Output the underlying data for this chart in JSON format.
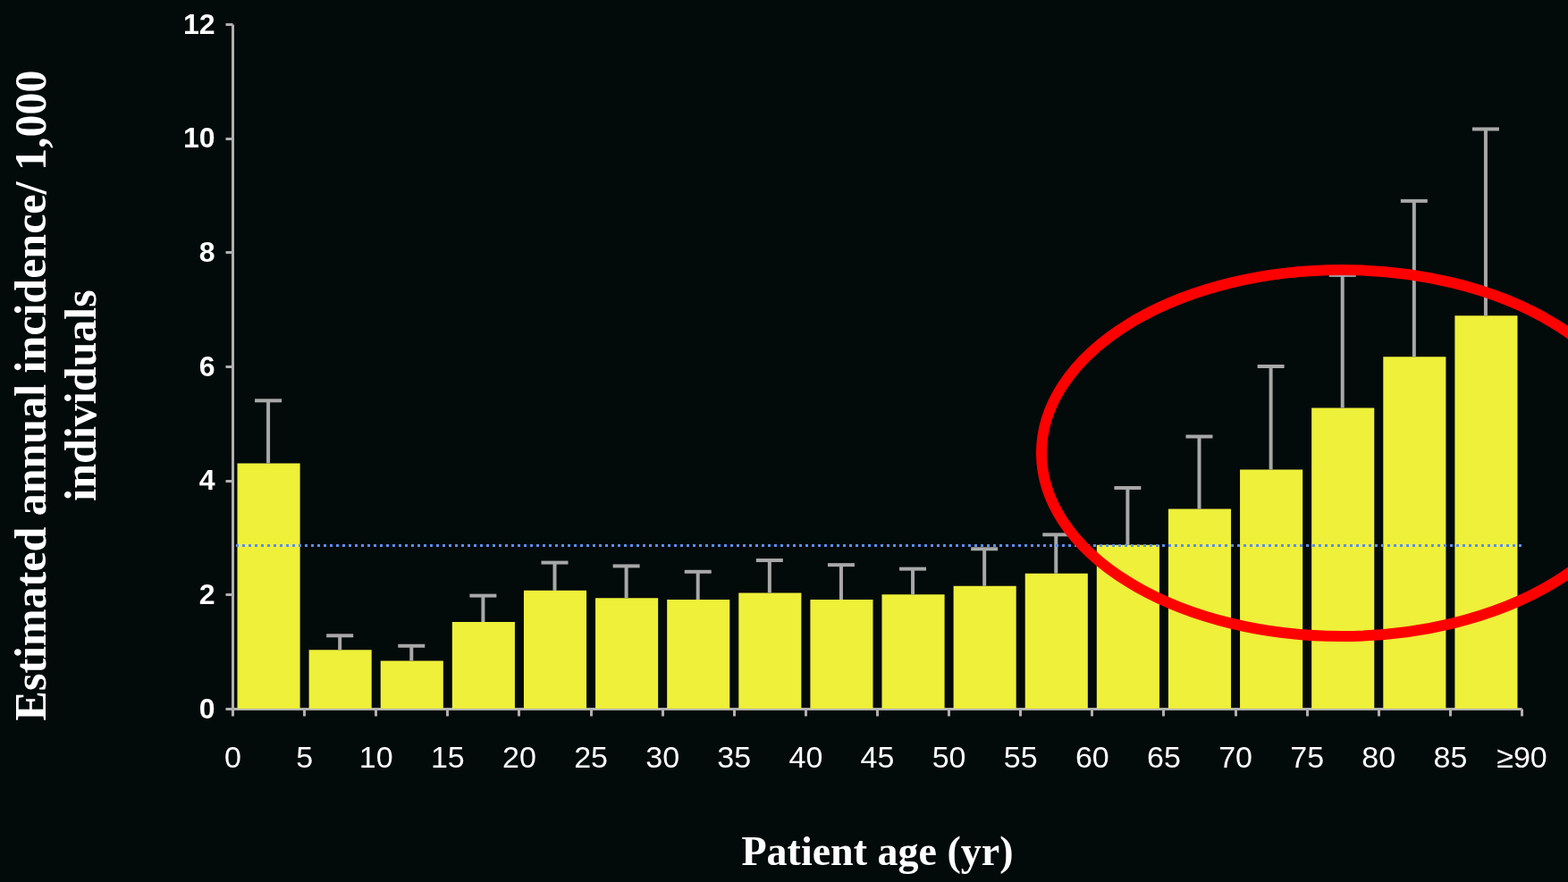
{
  "chart_data": {
    "type": "histogram",
    "xlabel": "Patient age (yr)",
    "ylabel": "Estimated annual incidence/ 1,000\nindividuals",
    "bins": [
      0,
      5,
      10,
      15,
      20,
      25,
      30,
      35,
      40,
      45,
      50,
      55,
      60,
      65,
      70,
      75,
      80,
      85,
      90
    ],
    "values": [
      4.3,
      1.03,
      0.84,
      1.52,
      2.07,
      1.94,
      1.91,
      2.03,
      1.91,
      2.0,
      2.15,
      2.37,
      2.87,
      3.5,
      4.19,
      5.27,
      6.17,
      6.89
    ],
    "errors": [
      [
        4.3,
        5.4
      ],
      [
        1.03,
        1.28
      ],
      [
        0.84,
        1.1
      ],
      [
        1.52,
        1.98
      ],
      [
        2.07,
        2.56
      ],
      [
        1.94,
        2.5
      ],
      [
        1.91,
        2.4
      ],
      [
        2.03,
        2.6
      ],
      [
        1.91,
        2.52
      ],
      [
        2.0,
        2.45
      ],
      [
        2.15,
        2.8
      ],
      [
        2.37,
        3.05
      ],
      [
        2.87,
        3.87
      ],
      [
        3.5,
        4.77
      ],
      [
        4.19,
        6.0
      ],
      [
        5.27,
        7.6
      ],
      [
        6.17,
        8.9
      ],
      [
        6.89,
        10.16
      ]
    ],
    "color": "#eef03a",
    "xlim": [
      0,
      90
    ],
    "ylim": [
      0,
      12
    ],
    "xticks": [
      0,
      5,
      10,
      15,
      20,
      25,
      30,
      35,
      40,
      45,
      50,
      55,
      60,
      65,
      70,
      75,
      80,
      85,
      {
        "value": 90,
        "label": "≥90"
      }
    ],
    "yticks": [
      0,
      2,
      4,
      6,
      8,
      10,
      12
    ],
    "ref_lines": [
      {
        "axis": "y",
        "value": 2.86,
        "color": "#5b8ef0",
        "line_style": "dotted"
      }
    ],
    "grid": false
  }
}
